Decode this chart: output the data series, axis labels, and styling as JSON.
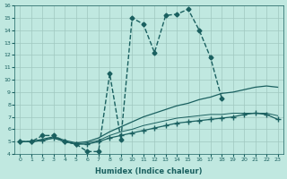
{
  "xlabel": "Humidex (Indice chaleur)",
  "ylabel": "",
  "bg_color": "#c0e8e0",
  "grid_color": "#a0c8c0",
  "line_color": "#1a6060",
  "xlim": [
    -0.5,
    23.5
  ],
  "ylim": [
    4,
    16
  ],
  "xticks": [
    0,
    1,
    2,
    3,
    4,
    5,
    6,
    7,
    8,
    9,
    10,
    11,
    12,
    13,
    14,
    15,
    16,
    17,
    18,
    19,
    20,
    21,
    22,
    23
  ],
  "yticks": [
    4,
    5,
    6,
    7,
    8,
    9,
    10,
    11,
    12,
    13,
    14,
    15,
    16
  ],
  "lines": [
    {
      "x": [
        0,
        1,
        2,
        3,
        4,
        5,
        6,
        7,
        8,
        9,
        10,
        11,
        12,
        13,
        14,
        15,
        16,
        17,
        18
      ],
      "y": [
        5,
        5,
        5.5,
        5.5,
        5,
        4.8,
        4.2,
        4.2,
        10.5,
        5.2,
        15,
        14.5,
        12.2,
        15.2,
        15.3,
        15.7,
        14,
        11.8,
        8.5
      ],
      "marker": "D",
      "markersize": 2.5,
      "linewidth": 1.0,
      "linestyle": "--"
    },
    {
      "x": [
        0,
        1,
        2,
        3,
        4,
        5,
        6,
        7,
        8,
        9,
        10,
        11,
        12,
        13,
        14,
        15,
        16,
        17,
        18,
        19,
        20,
        21,
        22,
        23
      ],
      "y": [
        5,
        5,
        5.2,
        5.4,
        5.1,
        4.9,
        5.0,
        5.3,
        5.8,
        6.2,
        6.6,
        7.0,
        7.3,
        7.6,
        7.9,
        8.1,
        8.4,
        8.6,
        8.9,
        9.0,
        9.2,
        9.4,
        9.5,
        9.4
      ],
      "marker": null,
      "markersize": 0,
      "linewidth": 0.9,
      "linestyle": "-"
    },
    {
      "x": [
        0,
        1,
        2,
        3,
        4,
        5,
        6,
        7,
        8,
        9,
        10,
        11,
        12,
        13,
        14,
        15,
        16,
        17,
        18,
        19,
        20,
        21,
        22,
        23
      ],
      "y": [
        5,
        5,
        5.1,
        5.3,
        5.0,
        4.8,
        4.9,
        5.1,
        5.5,
        5.8,
        6.0,
        6.3,
        6.5,
        6.7,
        6.9,
        7.0,
        7.1,
        7.2,
        7.2,
        7.3,
        7.3,
        7.3,
        7.3,
        7.1
      ],
      "marker": null,
      "markersize": 0,
      "linewidth": 0.7,
      "linestyle": "-"
    },
    {
      "x": [
        0,
        1,
        2,
        3,
        4,
        5,
        6,
        7,
        8,
        9,
        10,
        11,
        12,
        13,
        14,
        15,
        16,
        17,
        18,
        19,
        20,
        21,
        22,
        23
      ],
      "y": [
        5,
        5,
        5.1,
        5.3,
        5.0,
        4.8,
        4.8,
        5.0,
        5.3,
        5.5,
        5.7,
        5.9,
        6.1,
        6.3,
        6.5,
        6.6,
        6.7,
        6.8,
        6.9,
        7.0,
        7.2,
        7.3,
        7.2,
        6.8
      ],
      "marker": "+",
      "markersize": 4,
      "linewidth": 0.9,
      "linestyle": "-"
    }
  ]
}
